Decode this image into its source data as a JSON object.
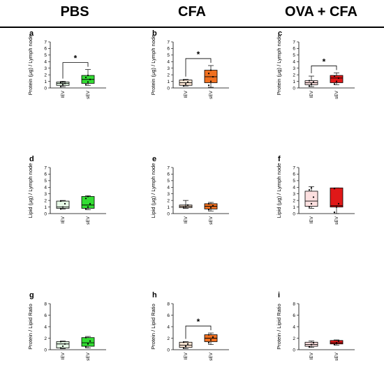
{
  "headers": [
    "PBS",
    "CFA",
    "OVA + CFA"
  ],
  "colors": {
    "pbs_light": "#e6f9e6",
    "pbs_dark": "#33dd33",
    "cfa_light": "#fde6d4",
    "cfa_dark": "#f07020",
    "ova_light": "#fde0e0",
    "ova_dark": "#e01818"
  },
  "chart_data": [
    {
      "panel": "a",
      "type": "box",
      "ylabel": "Protein (μg) / Lymph node",
      "ylim": [
        0,
        7
      ],
      "yticks": [
        0,
        1,
        2,
        3,
        4,
        5,
        6,
        7
      ],
      "categories": [
        "lEV",
        "sEV"
      ],
      "colors": [
        "#e6f9e6",
        "#33dd33"
      ],
      "boxes": [
        {
          "min": 0.2,
          "q1": 0.4,
          "median": 0.7,
          "q3": 0.9,
          "max": 1.0,
          "points": [
            0.2,
            0.5,
            0.7,
            0.8,
            0.9
          ]
        },
        {
          "min": 0.4,
          "q1": 0.7,
          "median": 1.3,
          "q3": 1.9,
          "max": 2.8,
          "points": [
            0.5,
            0.9,
            1.3,
            1.6,
            1.9
          ]
        }
      ],
      "significance": "*"
    },
    {
      "panel": "b",
      "type": "box",
      "ylabel": "Protein (μg) / Lymph node",
      "ylim": [
        0,
        7
      ],
      "yticks": [
        0,
        1,
        2,
        3,
        4,
        5,
        6,
        7
      ],
      "categories": [
        "lEV",
        "sEV"
      ],
      "colors": [
        "#fde6d4",
        "#f07020"
      ],
      "boxes": [
        {
          "min": 0.3,
          "q1": 0.4,
          "median": 0.8,
          "q3": 1.2,
          "max": 1.3,
          "points": [
            0.3,
            0.6,
            0.9,
            1.2
          ]
        },
        {
          "min": 0.1,
          "q1": 0.8,
          "median": 1.7,
          "q3": 2.7,
          "max": 3.4,
          "points": [
            0.4,
            1.0,
            1.7,
            2.2,
            2.7
          ]
        }
      ],
      "significance": "*"
    },
    {
      "panel": "c",
      "type": "box",
      "ylabel": "Protein (μg) / Lymph node",
      "ylim": [
        0,
        7
      ],
      "yticks": [
        0,
        1,
        2,
        3,
        4,
        5,
        6,
        7
      ],
      "categories": [
        "lEV",
        "sEV"
      ],
      "colors": [
        "#fde0e0",
        "#e01818"
      ],
      "boxes": [
        {
          "min": 0.2,
          "q1": 0.5,
          "median": 0.8,
          "q3": 1.1,
          "max": 1.8,
          "points": [
            0.3,
            0.6,
            0.9,
            1.1
          ]
        },
        {
          "min": 0.5,
          "q1": 0.8,
          "median": 1.5,
          "q3": 1.9,
          "max": 2.3,
          "points": [
            0.6,
            1.0,
            1.5,
            1.8
          ]
        }
      ],
      "significance": "*"
    },
    {
      "panel": "d",
      "type": "box",
      "ylabel": "Lipid (μg) / Lymph node",
      "ylim": [
        0,
        7
      ],
      "yticks": [
        0,
        1,
        2,
        3,
        4,
        5,
        6,
        7
      ],
      "categories": [
        "lEV",
        "sEV"
      ],
      "colors": [
        "#e6f9e6",
        "#33dd33"
      ],
      "boxes": [
        {
          "min": 0.7,
          "q1": 0.8,
          "median": 1.0,
          "q3": 1.9,
          "max": 2.0,
          "points": [
            0.7,
            1.0,
            1.5,
            1.9
          ]
        },
        {
          "min": 0.6,
          "q1": 0.8,
          "median": 1.3,
          "q3": 2.6,
          "max": 2.7,
          "points": [
            0.7,
            1.0,
            1.5,
            2.3,
            2.6
          ]
        }
      ],
      "significance": ""
    },
    {
      "panel": "e",
      "type": "box",
      "ylabel": "Lipid (μg) / Lymph node",
      "ylim": [
        0,
        7
      ],
      "yticks": [
        0,
        1,
        2,
        3,
        4,
        5,
        6,
        7
      ],
      "categories": [
        "lEV",
        "sEV"
      ],
      "colors": [
        "#fde6d4",
        "#f07020"
      ],
      "boxes": [
        {
          "min": 0.8,
          "q1": 0.9,
          "median": 1.1,
          "q3": 1.3,
          "max": 2.0,
          "points": [
            0.9,
            1.1,
            1.3
          ]
        },
        {
          "min": 0.4,
          "q1": 0.7,
          "median": 1.1,
          "q3": 1.5,
          "max": 1.7,
          "points": [
            0.6,
            0.9,
            1.2,
            1.5
          ]
        }
      ],
      "significance": ""
    },
    {
      "panel": "f",
      "type": "box",
      "ylabel": "Lipid (μg) / Lymph node",
      "ylim": [
        0,
        7
      ],
      "yticks": [
        0,
        1,
        2,
        3,
        4,
        5,
        6,
        7
      ],
      "categories": [
        "lEV",
        "sEV"
      ],
      "colors": [
        "#fde0e0",
        "#e01818"
      ],
      "boxes": [
        {
          "min": 0.8,
          "q1": 1.1,
          "median": 1.9,
          "q3": 3.4,
          "max": 4.1,
          "points": [
            1.0,
            1.5,
            2.5,
            3.6,
            3.9
          ]
        },
        {
          "min": 0.0,
          "q1": 1.0,
          "median": 1.2,
          "q3": 3.9,
          "max": 3.9,
          "points": [
            0.2,
            1.0,
            1.5,
            3.8
          ]
        }
      ],
      "significance": ""
    },
    {
      "panel": "g",
      "type": "box",
      "ylabel": "Protein / Lipid Ratio",
      "ylim": [
        0,
        8
      ],
      "yticks": [
        0,
        2,
        4,
        6,
        8
      ],
      "categories": [
        "lEV",
        "sEV"
      ],
      "colors": [
        "#e6f9e6",
        "#33dd33"
      ],
      "boxes": [
        {
          "min": 0.2,
          "q1": 0.3,
          "median": 1.0,
          "q3": 1.4,
          "max": 1.5,
          "points": [
            0.3,
            0.6,
            1.0,
            1.4
          ]
        },
        {
          "min": 0.3,
          "q1": 0.6,
          "median": 1.2,
          "q3": 2.1,
          "max": 2.3,
          "points": [
            0.5,
            1.0,
            1.5,
            2.1
          ]
        }
      ],
      "significance": ""
    },
    {
      "panel": "h",
      "type": "box",
      "ylabel": "Protein / Lipid Ratio",
      "ylim": [
        0,
        8
      ],
      "yticks": [
        0,
        2,
        4,
        6,
        8
      ],
      "categories": [
        "lEV",
        "sEV"
      ],
      "colors": [
        "#fde6d4",
        "#f07020"
      ],
      "boxes": [
        {
          "min": 0.2,
          "q1": 0.4,
          "median": 0.8,
          "q3": 1.3,
          "max": 1.4,
          "points": [
            0.3,
            0.6,
            1.0,
            1.3
          ]
        },
        {
          "min": 0.9,
          "q1": 1.4,
          "median": 2.0,
          "q3": 2.6,
          "max": 2.9,
          "points": [
            1.2,
            1.7,
            2.2,
            2.6
          ]
        }
      ],
      "significance": "*"
    },
    {
      "panel": "i",
      "type": "box",
      "ylabel": "Protein / Lipid Ratio",
      "ylim": [
        0,
        8
      ],
      "yticks": [
        0,
        2,
        4,
        6,
        8
      ],
      "categories": [
        "lEV",
        "sEV"
      ],
      "colors": [
        "#fde0e0",
        "#e01818"
      ],
      "boxes": [
        {
          "min": 0.4,
          "q1": 0.6,
          "median": 0.9,
          "q3": 1.3,
          "max": 1.5,
          "points": [
            0.5,
            0.9,
            1.2
          ]
        },
        {
          "min": 0.8,
          "q1": 1.0,
          "median": 1.2,
          "q3": 1.6,
          "max": 1.7,
          "points": [
            0.9,
            1.2,
            1.5
          ]
        }
      ],
      "significance": ""
    }
  ]
}
